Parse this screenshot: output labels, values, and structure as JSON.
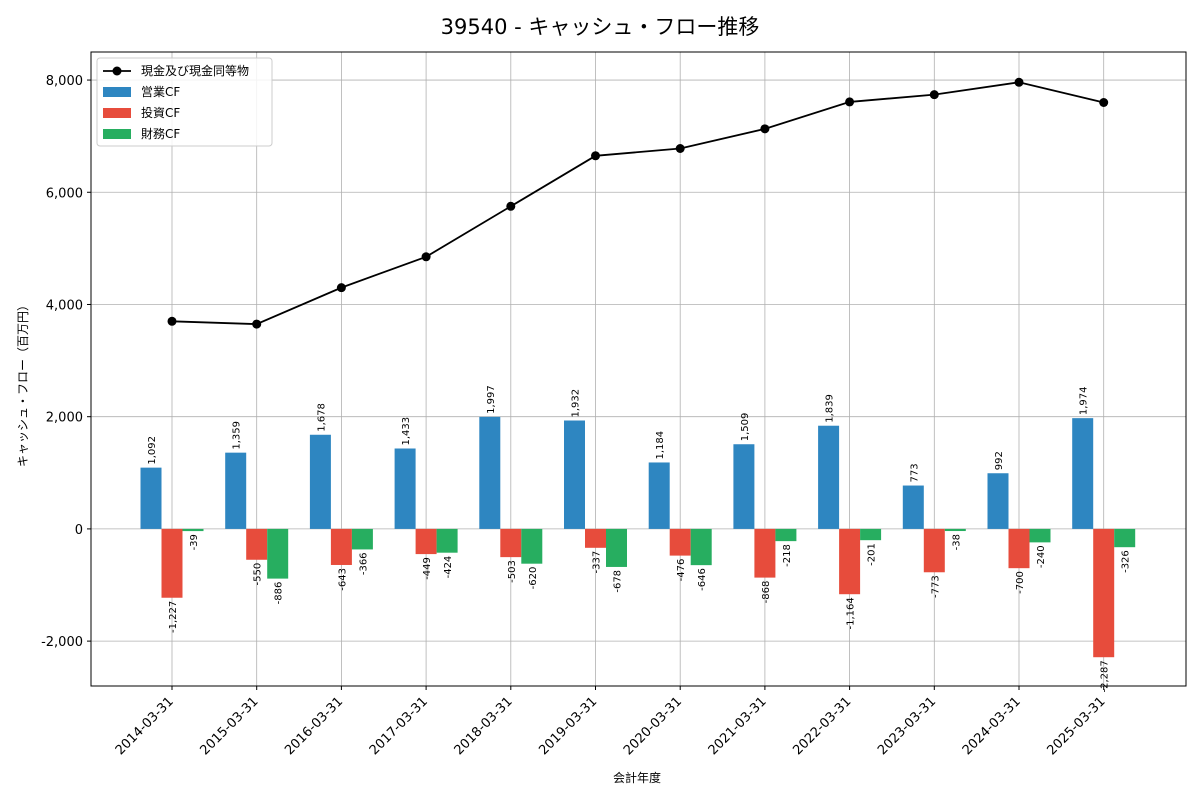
{
  "chart_data": {
    "type": "bar",
    "title": "39540 - キャッシュ・フロー推移",
    "xlabel": "会計年度",
    "ylabel": "キャッシュ・フロー（百万円）",
    "ylim": [
      -2800,
      8500
    ],
    "yticks": [
      -2000,
      0,
      2000,
      4000,
      6000,
      8000
    ],
    "ytick_labels": [
      "-2,000",
      "0",
      "2,000",
      "4,000",
      "6,000",
      "8,000"
    ],
    "grid": true,
    "legend_position": "top-left",
    "categories": [
      "2014-03-31",
      "2015-03-31",
      "2016-03-31",
      "2017-03-31",
      "2018-03-31",
      "2019-03-31",
      "2020-03-31",
      "2021-03-31",
      "2022-03-31",
      "2023-03-31",
      "2024-03-31",
      "2025-03-31"
    ],
    "series": [
      {
        "name": "営業CF",
        "type": "bar",
        "color": "#2e86c1",
        "values": [
          1092,
          1359,
          1678,
          1433,
          1997,
          1932,
          1184,
          1509,
          1839,
          773,
          992,
          1974
        ],
        "labels": [
          "1,092",
          "1,359",
          "1,678",
          "1,433",
          "1,997",
          "1,932",
          "1,184",
          "1,509",
          "1,839",
          "773",
          "992",
          "1,974"
        ]
      },
      {
        "name": "投資CF",
        "type": "bar",
        "color": "#e74c3c",
        "values": [
          -1227,
          -550,
          -643,
          -449,
          -503,
          -337,
          -476,
          -868,
          -1164,
          -773,
          -700,
          -2287
        ],
        "labels": [
          "-1,227",
          "-550",
          "-643",
          "-449",
          "-503",
          "-337",
          "-476",
          "-868",
          "-1,164",
          "-773",
          "-700",
          "-2,287"
        ]
      },
      {
        "name": "財務CF",
        "type": "bar",
        "color": "#27ae60",
        "values": [
          -39,
          -886,
          -366,
          -424,
          -620,
          -678,
          -646,
          -218,
          -201,
          -38,
          -240,
          -326
        ],
        "labels": [
          "-39",
          "-886",
          "-366",
          "-424",
          "-620",
          "-678",
          "-646",
          "-218",
          "-201",
          "-38",
          "-240",
          "-326"
        ]
      },
      {
        "name": "現金及び現金同等物",
        "type": "line",
        "color": "#000000",
        "values": [
          3700,
          3650,
          4300,
          4850,
          5750,
          6650,
          6780,
          7130,
          7610,
          7740,
          7960,
          7600
        ]
      }
    ]
  }
}
